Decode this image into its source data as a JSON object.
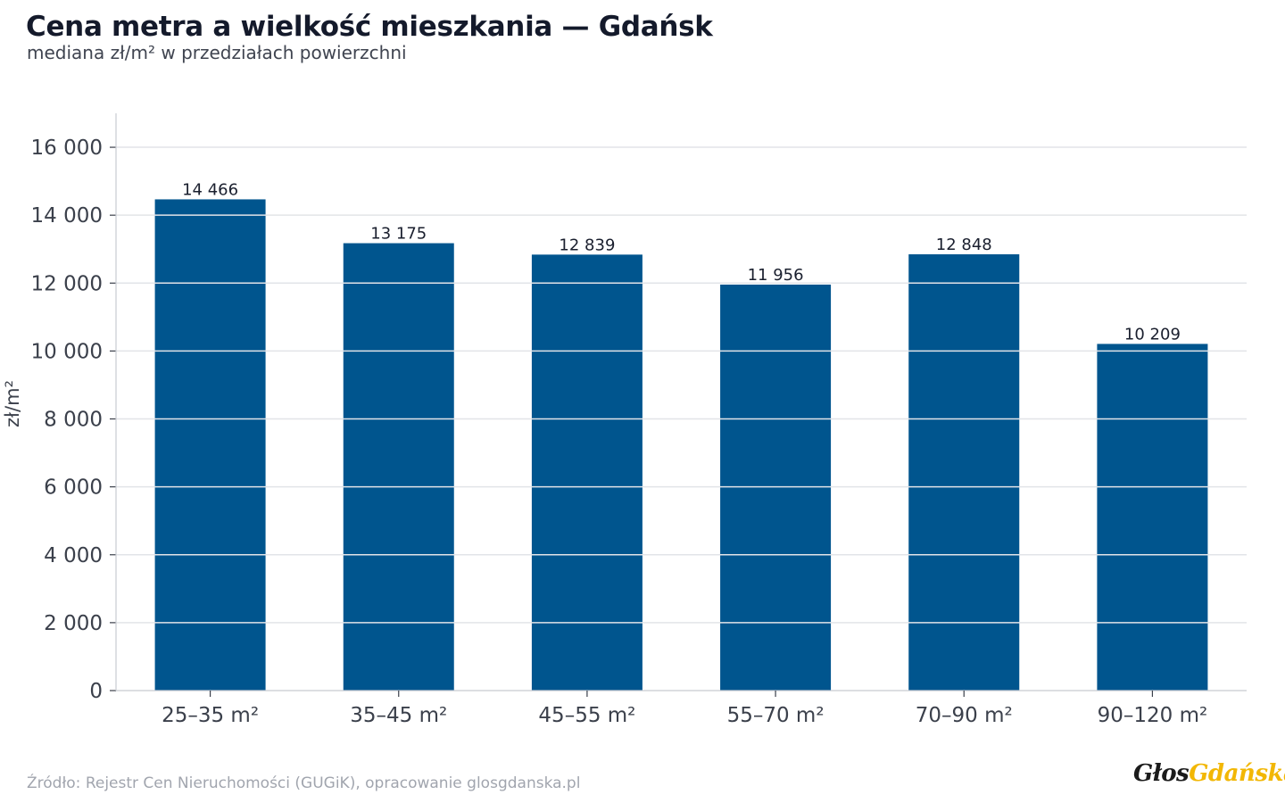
{
  "header": {
    "title": "Cena metra a wielkość mieszkania — Gdańsk",
    "subtitle": "mediana zł/m² w przedziałach powierzchni"
  },
  "chart_data": {
    "type": "bar",
    "categories": [
      "25–35 m²",
      "35–45 m²",
      "45–55 m²",
      "55–70 m²",
      "70–90 m²",
      "90–120 m²"
    ],
    "values": [
      14466,
      13175,
      12839,
      11956,
      12848,
      10209
    ],
    "data_labels": [
      "14 466",
      "13 175",
      "12 839",
      "11 956",
      "12 848",
      "10 209"
    ],
    "ylabel": "zł/m²",
    "xlabel": "",
    "ylim": [
      0,
      17000
    ],
    "yticks": [
      0,
      2000,
      4000,
      6000,
      8000,
      10000,
      12000,
      14000,
      16000
    ],
    "ytick_labels": [
      "0",
      "2 000",
      "4 000",
      "6 000",
      "8 000",
      "10 000",
      "12 000",
      "14 000",
      "16 000"
    ],
    "grid": true,
    "legend": "none",
    "colors": {
      "bar": "#00558e",
      "grid": "#e2e4e8",
      "axis": "#c8cbd1"
    }
  },
  "footer": {
    "source": "Źródło: Rejestr Cen Nieruchomości (GUGiK), opracowanie glosgdanska.pl",
    "logo_part1": "Głos",
    "logo_part2": "Gdańska"
  }
}
